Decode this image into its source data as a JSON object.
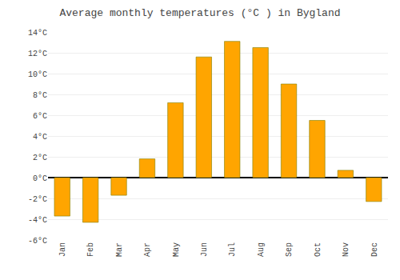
{
  "chart_data": {
    "type": "bar",
    "title": "Average monthly temperatures (°C ) in Bygland",
    "categories": [
      "Jan",
      "Feb",
      "Mar",
      "Apr",
      "May",
      "Jun",
      "Jul",
      "Aug",
      "Sep",
      "Oct",
      "Nov",
      "Dec"
    ],
    "values": [
      -3.7,
      -4.3,
      -1.7,
      1.8,
      7.2,
      11.6,
      13.1,
      12.5,
      9.0,
      5.5,
      0.7,
      -2.3
    ],
    "color": "#FFA500",
    "ylim": [
      -6,
      14
    ],
    "yticks": [
      {
        "value": -6,
        "label": "-6°C"
      },
      {
        "value": -4,
        "label": "-4°C"
      },
      {
        "value": -2,
        "label": "-2°C"
      },
      {
        "value": 0,
        "label": "0°C"
      },
      {
        "value": 2,
        "label": "2°C"
      },
      {
        "value": 4,
        "label": "4°C"
      },
      {
        "value": 6,
        "label": "6°C"
      },
      {
        "value": 8,
        "label": "8°C"
      },
      {
        "value": 10,
        "label": "10°C"
      },
      {
        "value": 12,
        "label": "12°C"
      },
      {
        "value": 14,
        "label": "14°C"
      }
    ],
    "grid": true
  }
}
